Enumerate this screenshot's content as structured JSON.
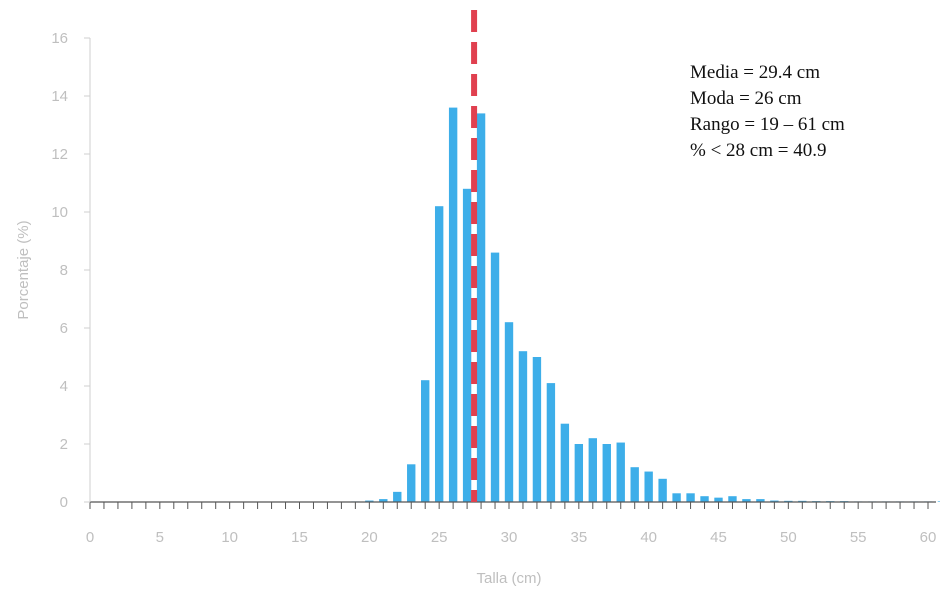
{
  "chart_data": {
    "type": "bar",
    "title": "",
    "xlabel": "Talla (cm)",
    "ylabel": "Porcentaje (%)",
    "xlim": [
      0,
      60
    ],
    "ylim": [
      0,
      16
    ],
    "x_ticks": [
      0,
      5,
      10,
      15,
      20,
      25,
      30,
      35,
      40,
      45,
      50,
      55,
      60
    ],
    "y_ticks": [
      0,
      2,
      4,
      6,
      8,
      10,
      12,
      14,
      16
    ],
    "grid": false,
    "legend": "none",
    "bar_color": "#3daee9",
    "reference_line": {
      "x": 27.5,
      "style": "dashed",
      "color": "#e0404f"
    },
    "x": [
      19,
      20,
      21,
      22,
      23,
      24,
      25,
      26,
      27,
      28,
      29,
      30,
      31,
      32,
      33,
      34,
      35,
      36,
      37,
      38,
      39,
      40,
      41,
      42,
      43,
      44,
      45,
      46,
      47,
      48,
      49,
      50,
      51,
      52,
      53,
      54,
      55,
      56,
      57,
      58,
      59,
      60,
      61
    ],
    "values": [
      0.02,
      0.05,
      0.1,
      0.35,
      1.3,
      4.2,
      10.2,
      13.6,
      10.8,
      13.4,
      8.6,
      6.2,
      5.2,
      5.0,
      4.1,
      2.7,
      2.0,
      2.2,
      2.0,
      2.05,
      1.2,
      1.05,
      0.8,
      0.3,
      0.3,
      0.2,
      0.15,
      0.2,
      0.1,
      0.1,
      0.05,
      0.04,
      0.04,
      0.03,
      0.03,
      0.03,
      0.02,
      0.02,
      0.02,
      0.02,
      0.02,
      0.02,
      0.02
    ]
  },
  "stats": {
    "media": "Media = 29.4  cm",
    "moda": "Moda = 26 cm",
    "rango": "Rango = 19 – 61 cm",
    "porcentaje": "% < 28 cm = 40.9"
  }
}
